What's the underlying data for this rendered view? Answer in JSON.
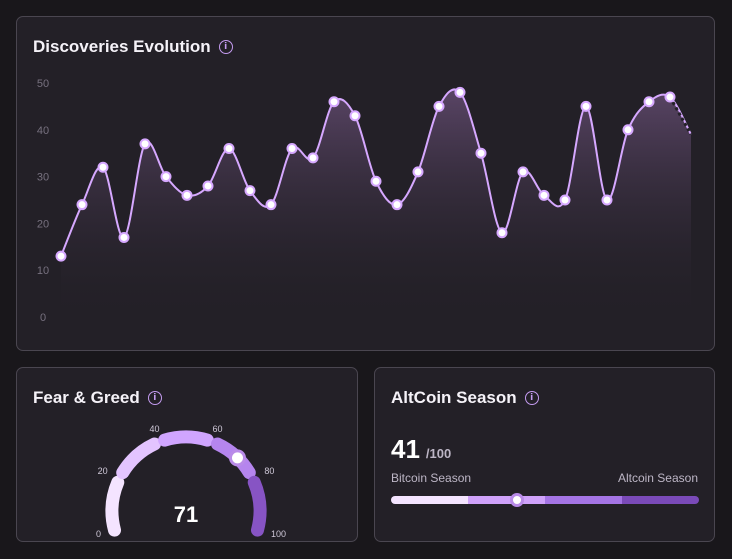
{
  "evolution": {
    "title": "Discoveries Evolution",
    "info_icon": "info-icon",
    "chart_data": {
      "type": "area",
      "x": [
        1,
        2,
        3,
        4,
        5,
        6,
        7,
        8,
        9,
        10,
        11,
        12,
        13,
        14,
        15,
        16,
        17,
        18,
        19,
        20,
        21,
        22,
        23,
        24,
        25,
        26,
        27,
        28,
        29,
        30,
        31
      ],
      "values": [
        13,
        24,
        32,
        17,
        37,
        30,
        26,
        28,
        36,
        27,
        24,
        36,
        34,
        46,
        43,
        29,
        24,
        31,
        45,
        48,
        35,
        18,
        31,
        26,
        25,
        45,
        25,
        40,
        46,
        47,
        39
      ],
      "y_ticks": [
        "50",
        "40",
        "30",
        "20",
        "10",
        "0"
      ],
      "ylim": [
        0,
        50
      ],
      "grid": false,
      "line_color": "#d6a8ff",
      "fill_color": "#5a4566"
    }
  },
  "fear_greed": {
    "title": "Fear & Greed",
    "info_icon": "info-icon",
    "value": "71",
    "value_number": 71,
    "tick_labels": [
      "0",
      "20",
      "40",
      "60",
      "80",
      "100"
    ],
    "segment_colors": [
      "#f4e4ff",
      "#e3c4ff",
      "#d0a5ff",
      "#b585ee",
      "#8754c4"
    ]
  },
  "altcoin": {
    "title": "AltCoin Season",
    "info_icon": "info-icon",
    "value": "41",
    "max": "/100",
    "value_number": 41,
    "left_label": "Bitcoin Season",
    "right_label": "Altcoin Season",
    "segment_colors": [
      "#f4e4ff",
      "#cfa2fa",
      "#a474e4",
      "#7a4ab8"
    ]
  }
}
